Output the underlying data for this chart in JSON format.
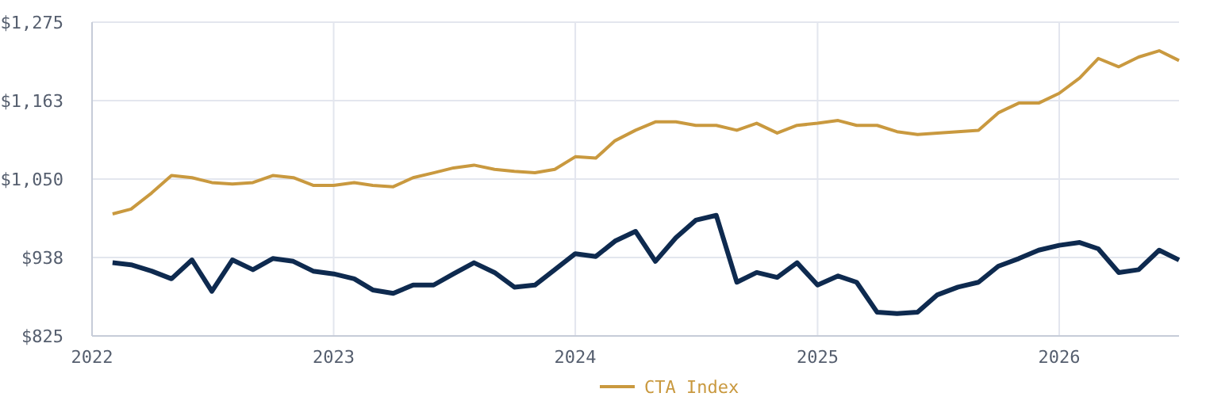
{
  "chart_data": {
    "type": "line",
    "xlim": [
      "2022-01",
      "2026-07"
    ],
    "xticks": [
      {
        "value": "2022",
        "label": "2022"
      },
      {
        "value": "2023",
        "label": "2023"
      },
      {
        "value": "2024",
        "label": "2024"
      },
      {
        "value": "2025",
        "label": "2025"
      },
      {
        "value": "2026",
        "label": "2026"
      }
    ],
    "ylim": [
      825,
      1275
    ],
    "yticks": [
      {
        "value": 825,
        "label": "$825"
      },
      {
        "value": 937.5,
        "label": "$938"
      },
      {
        "value": 1050,
        "label": "$1,050"
      },
      {
        "value": 1162.5,
        "label": "$1,163"
      },
      {
        "value": 1275,
        "label": "$1,275"
      }
    ],
    "grid": true,
    "legend": "bottom",
    "line_style": "solid",
    "marker": "none",
    "x": [
      "2022-02",
      "2022-03",
      "2022-04",
      "2022-05",
      "2022-06",
      "2022-07",
      "2022-08",
      "2022-09",
      "2022-10",
      "2022-11",
      "2022-12",
      "2023-01",
      "2023-02",
      "2023-03",
      "2023-04",
      "2023-05",
      "2023-06",
      "2023-07",
      "2023-08",
      "2023-09",
      "2023-10",
      "2023-11",
      "2023-12",
      "2024-01",
      "2024-02",
      "2024-03",
      "2024-04",
      "2024-05",
      "2024-06",
      "2024-07",
      "2024-08",
      "2024-09",
      "2024-10",
      "2024-11",
      "2024-12",
      "2025-01",
      "2025-02",
      "2025-03",
      "2025-04",
      "2025-05",
      "2025-06",
      "2025-07",
      "2025-08",
      "2025-09",
      "2025-10",
      "2025-11",
      "2025-12",
      "2026-01",
      "2026-02",
      "2026-03",
      "2026-04",
      "2026-05",
      "2026-06",
      "2026-07"
    ],
    "series": [
      {
        "color": "#0e2a4f",
        "values": [
          930,
          927,
          918,
          907,
          934,
          889,
          934,
          920,
          936,
          932,
          918,
          914,
          907,
          891,
          886,
          898,
          898,
          914,
          930,
          916,
          895,
          898,
          920,
          943,
          939,
          961,
          975,
          932,
          966,
          991,
          998,
          902,
          916,
          909,
          930,
          898,
          911,
          902,
          859,
          857,
          859,
          884,
          895,
          902,
          925,
          936,
          948,
          955,
          959,
          950,
          916,
          920,
          948,
          934
        ]
      },
      {
        "name": "CTA Index",
        "color": "#c9993f",
        "values": [
          1000,
          1007,
          1030,
          1055,
          1052,
          1045,
          1043,
          1045,
          1055,
          1052,
          1041,
          1041,
          1045,
          1041,
          1039,
          1052,
          1059,
          1066,
          1070,
          1064,
          1061,
          1059,
          1064,
          1082,
          1080,
          1105,
          1120,
          1132,
          1132,
          1127,
          1127,
          1120,
          1130,
          1116,
          1127,
          1130,
          1134,
          1127,
          1127,
          1118,
          1114,
          1116,
          1118,
          1120,
          1145,
          1159,
          1159,
          1173,
          1195,
          1223,
          1211,
          1225,
          1234,
          1220
        ]
      }
    ]
  }
}
